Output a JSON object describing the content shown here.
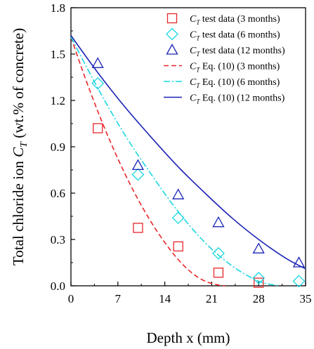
{
  "chart_data": {
    "type": "scatter",
    "xlabel": "Depth x (mm)",
    "ylabel": {
      "main": "Total chloride ion ",
      "symbol": "C",
      "subscript": "T",
      "tail": " (wt.% of concrete)"
    },
    "xlim": [
      0,
      35
    ],
    "ylim": [
      0.0,
      1.8
    ],
    "x_ticks": [
      0,
      7,
      14,
      21,
      28,
      35
    ],
    "x_tick_labels": [
      "0",
      "7",
      "14",
      "21",
      "28",
      "35"
    ],
    "y_ticks": [
      0.0,
      0.3,
      0.6,
      0.9,
      1.2,
      1.5,
      1.8
    ],
    "y_tick_labels": [
      "0.0",
      "0.3",
      "0.6",
      "0.9",
      "1.2",
      "1.5",
      "1.8"
    ],
    "legend_position": "top-right",
    "colors": {
      "three_months": "#e8262a",
      "six_months": "#19d6e0",
      "twelve_months": "#1a23b5"
    },
    "series": [
      {
        "name": {
          "symbol": "C",
          "subscript": "T",
          "text": " test data (3 months)"
        },
        "kind": "markers",
        "marker": "square",
        "color": "#e8262a",
        "x": [
          4,
          10,
          16,
          22,
          28
        ],
        "y": [
          1.02,
          0.375,
          0.255,
          0.085,
          0.02
        ]
      },
      {
        "name": {
          "symbol": "C",
          "subscript": "T",
          "text": " test data (6 months)"
        },
        "kind": "markers",
        "marker": "diamond",
        "color": "#19d6e0",
        "x": [
          4,
          10,
          16,
          22,
          28,
          34
        ],
        "y": [
          1.31,
          0.72,
          0.44,
          0.21,
          0.05,
          0.03
        ]
      },
      {
        "name": {
          "symbol": "C",
          "subscript": "T",
          "text": " test data (12 months)"
        },
        "kind": "markers",
        "marker": "triangle",
        "color": "#1a23b5",
        "x": [
          4,
          10,
          16,
          22,
          28,
          34
        ],
        "y": [
          1.44,
          0.78,
          0.59,
          0.41,
          0.24,
          0.15
        ]
      },
      {
        "name": {
          "symbol": "C",
          "subscript": "T",
          "text": " Eq. (10) (3 months)"
        },
        "kind": "line",
        "dash": "dashed",
        "color": "#e8262a",
        "x": [
          0,
          2,
          4,
          6,
          8,
          10,
          12,
          14,
          16,
          18,
          20,
          22,
          23
        ],
        "y": [
          1.61,
          1.36,
          1.13,
          0.92,
          0.73,
          0.56,
          0.41,
          0.28,
          0.17,
          0.085,
          0.03,
          0.005,
          0.0
        ]
      },
      {
        "name": {
          "symbol": "C",
          "subscript": "T",
          "text": " Eq. (10) (6 months)"
        },
        "kind": "line",
        "dash": "dashdot",
        "color": "#19d6e0",
        "x": [
          0,
          4,
          8,
          12,
          16,
          20,
          24,
          28,
          31
        ],
        "y": [
          1.61,
          1.28,
          0.98,
          0.72,
          0.48,
          0.28,
          0.13,
          0.03,
          0.0
        ]
      },
      {
        "name": {
          "symbol": "C",
          "subscript": "T",
          "text": " Eq. (10) (12 months)"
        },
        "kind": "line",
        "dash": "solid",
        "color": "#1a23b5",
        "x": [
          0,
          4,
          8,
          12,
          16,
          20,
          24,
          28,
          32,
          35
        ],
        "y": [
          1.62,
          1.38,
          1.16,
          0.96,
          0.77,
          0.6,
          0.44,
          0.3,
          0.18,
          0.11
        ]
      }
    ]
  }
}
